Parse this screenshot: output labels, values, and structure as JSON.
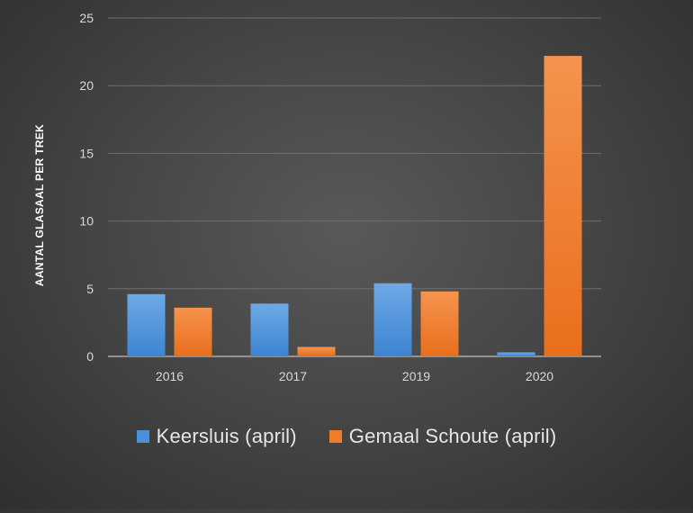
{
  "chart_data": {
    "type": "bar",
    "categories": [
      "2016",
      "2017",
      "2019",
      "2020"
    ],
    "series": [
      {
        "name": "Keersluis (april)",
        "values": [
          4.6,
          3.9,
          5.4,
          0.3
        ],
        "color": "#4a90d9"
      },
      {
        "name": "Gemaal Schoute (april)",
        "values": [
          3.6,
          0.7,
          4.8,
          22.2
        ],
        "color": "#f07c2a"
      }
    ],
    "ylabel": "AANTAL GLASAAL PER TREK",
    "xlabel": "",
    "ylim": [
      0,
      25
    ],
    "yticks": [
      0,
      5,
      10,
      15,
      20,
      25
    ],
    "grid": true,
    "legend_position": "bottom"
  }
}
